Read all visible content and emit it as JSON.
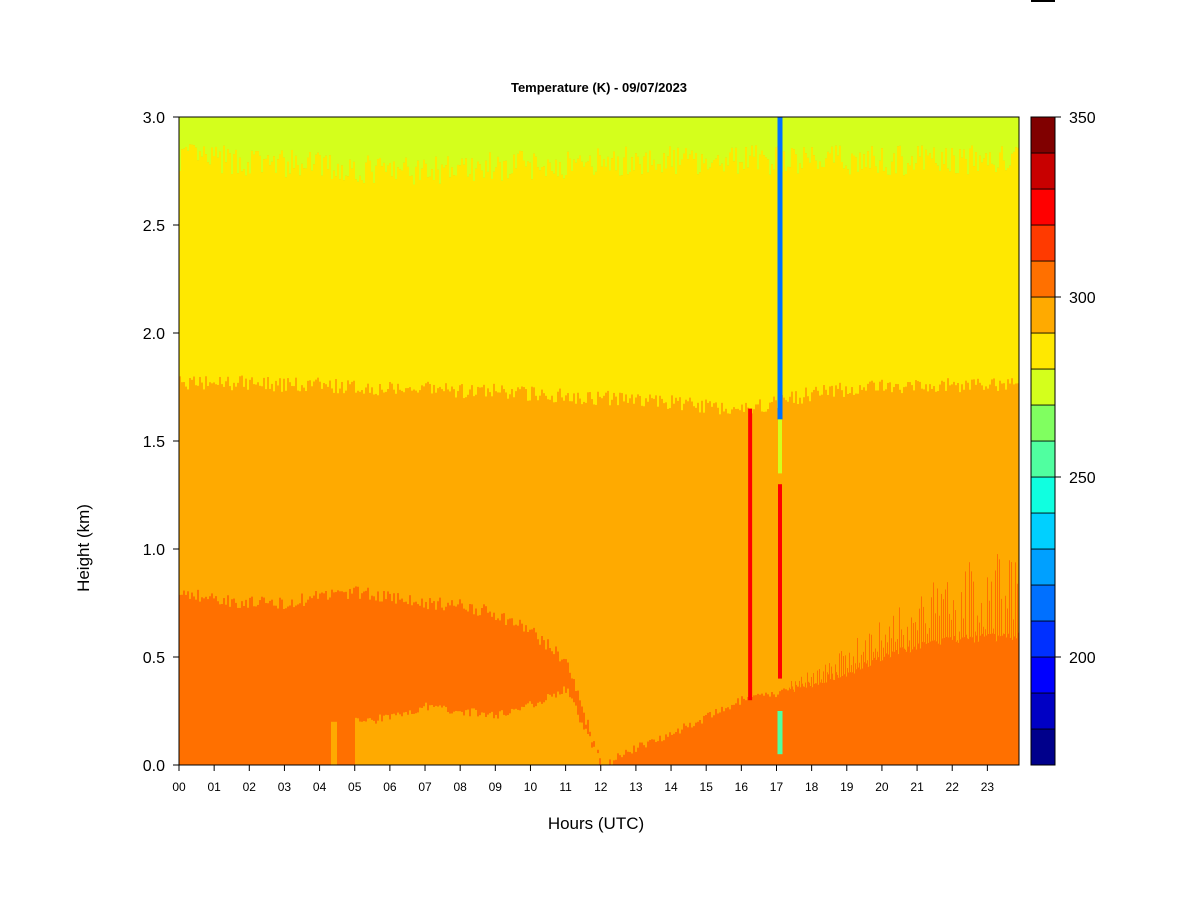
{
  "chart_data": {
    "type": "heatmap",
    "title": "Temperature (K) - 09/07/2023",
    "xlabel": "Hours (UTC)",
    "ylabel": "Height (km)",
    "xlim": [
      0,
      23.9
    ],
    "ylim": [
      0,
      3.0
    ],
    "x_ticks": [
      "00",
      "01",
      "02",
      "03",
      "04",
      "05",
      "06",
      "07",
      "08",
      "09",
      "10",
      "11",
      "12",
      "13",
      "14",
      "15",
      "16",
      "17",
      "18",
      "19",
      "20",
      "21",
      "22",
      "23"
    ],
    "y_ticks": [
      "0.0",
      "0.5",
      "1.0",
      "1.5",
      "2.0",
      "2.5",
      "3.0"
    ],
    "colorbar": {
      "min": 170,
      "max": 350,
      "tick_labels": [
        "200",
        "250",
        "300",
        "350"
      ],
      "tick_values": [
        200,
        250,
        300,
        350
      ],
      "levels": [
        {
          "from": 170,
          "to": 180,
          "color": "#00008b"
        },
        {
          "from": 180,
          "to": 190,
          "color": "#0000c4"
        },
        {
          "from": 190,
          "to": 200,
          "color": "#0000ff"
        },
        {
          "from": 200,
          "to": 210,
          "color": "#0030ff"
        },
        {
          "from": 210,
          "to": 220,
          "color": "#0070ff"
        },
        {
          "from": 220,
          "to": 230,
          "color": "#00a0ff"
        },
        {
          "from": 230,
          "to": 240,
          "color": "#00d0ff"
        },
        {
          "from": 240,
          "to": 250,
          "color": "#10ffe0"
        },
        {
          "from": 250,
          "to": 260,
          "color": "#50ffa0"
        },
        {
          "from": 260,
          "to": 270,
          "color": "#80ff60"
        },
        {
          "from": 270,
          "to": 280,
          "color": "#d4ff1c"
        },
        {
          "from": 280,
          "to": 290,
          "color": "#ffe800"
        },
        {
          "from": 290,
          "to": 300,
          "color": "#ffaa00"
        },
        {
          "from": 300,
          "to": 310,
          "color": "#ff7000"
        },
        {
          "from": 310,
          "to": 320,
          "color": "#ff3a00"
        },
        {
          "from": 320,
          "to": 330,
          "color": "#ff0000"
        },
        {
          "from": 330,
          "to": 340,
          "color": "#c80000"
        },
        {
          "from": 340,
          "to": 350,
          "color": "#800000"
        }
      ]
    },
    "field_description": {
      "layers_bottom_to_top_K": [
        {
          "band": "295-305",
          "note": "surface layer, lower boundary ~0 km, top ~0.8 km (00-12 UTC) and rising from 0 to ~0.7 km after 12 UTC"
        },
        {
          "band": "290-300",
          "note": "mid layer up to ~1.75 km"
        },
        {
          "band": "280-290",
          "note": "upper layer up to ~2.8 km"
        },
        {
          "band": "270-280",
          "note": "top of domain near 3.0 km"
        }
      ]
    },
    "layer_boundaries": {
      "hours": [
        0,
        1,
        2,
        3,
        4,
        5,
        6,
        7,
        8,
        9,
        10,
        11,
        12,
        13,
        14,
        15,
        16,
        17,
        18,
        19,
        20,
        21,
        22,
        23.9
      ],
      "warm_surface_top_km": [
        0.8,
        0.77,
        0.75,
        0.75,
        0.78,
        0.8,
        0.78,
        0.75,
        0.74,
        0.7,
        0.62,
        0.48,
        0.0,
        0.0,
        0.0,
        0.0,
        0.0,
        0.0,
        0.0,
        0.0,
        0.0,
        0.0,
        0.0,
        0.0
      ],
      "cool_pocket_lower_km": [
        0.0,
        0.0,
        0.0,
        0.0,
        0.0,
        0.2,
        0.22,
        0.27,
        0.25,
        0.23,
        0.28,
        0.35,
        0.0,
        0.08,
        0.15,
        0.22,
        0.3,
        0.33,
        0.38,
        0.43,
        0.5,
        0.55,
        0.58,
        0.6
      ],
      "mid_top_km": [
        1.77,
        1.77,
        1.77,
        1.76,
        1.76,
        1.75,
        1.74,
        1.74,
        1.73,
        1.73,
        1.72,
        1.71,
        1.7,
        1.69,
        1.68,
        1.66,
        1.65,
        1.68,
        1.72,
        1.74,
        1.75,
        1.75,
        1.76,
        1.77
      ],
      "upper_top_km": [
        2.82,
        2.8,
        2.79,
        2.78,
        2.77,
        2.76,
        2.75,
        2.75,
        2.76,
        2.77,
        2.78,
        2.78,
        2.79,
        2.8,
        2.8,
        2.8,
        2.8,
        2.8,
        2.8,
        2.8,
        2.8,
        2.8,
        2.8,
        2.8
      ]
    },
    "anomalies": [
      {
        "hour": 17.1,
        "from_km": 1.6,
        "to_km": 3.0,
        "value_K": 215,
        "note": "narrow cold column"
      },
      {
        "hour": 17.1,
        "from_km": 1.35,
        "to_km": 1.6,
        "value_K": 275
      },
      {
        "hour": 17.1,
        "from_km": 0.4,
        "to_km": 1.3,
        "value_K": 325,
        "note": "narrow hot column"
      },
      {
        "hour": 17.1,
        "from_km": 0.05,
        "to_km": 0.25,
        "value_K": 255
      },
      {
        "hour": 16.25,
        "from_km": 0.3,
        "to_km": 1.65,
        "value_K": 320
      }
    ]
  }
}
